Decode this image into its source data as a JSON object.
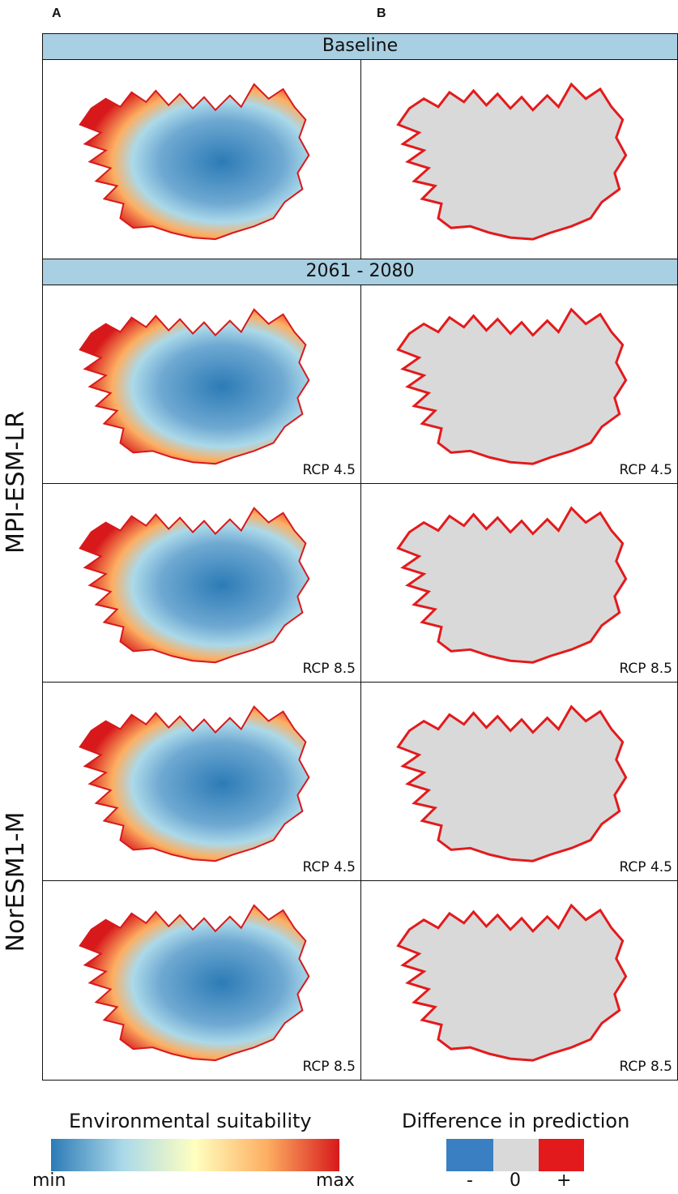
{
  "columns": [
    "A",
    "B"
  ],
  "bands": {
    "baseline": "Baseline",
    "future": "2061 - 2080"
  },
  "row_labels": {
    "group1": "MPI-ESM-LR",
    "group2": "NorESM1-M"
  },
  "panel_labels": [
    "RCP 4.5",
    "RCP 8.5",
    "RCP 4.5",
    "RCP 8.5"
  ],
  "legend_a": {
    "title": "Environmental suitability",
    "min": "min",
    "max": "max",
    "colors": [
      "#2c7bb6",
      "#abd9e9",
      "#ffffbf",
      "#fdae61",
      "#d7191c"
    ]
  },
  "legend_b": {
    "title": "Difference in prediction",
    "ticks": [
      "-",
      "0",
      "+"
    ],
    "colors": [
      "#3a7fc1",
      "#d9d9d9",
      "#e31a1c"
    ]
  }
}
